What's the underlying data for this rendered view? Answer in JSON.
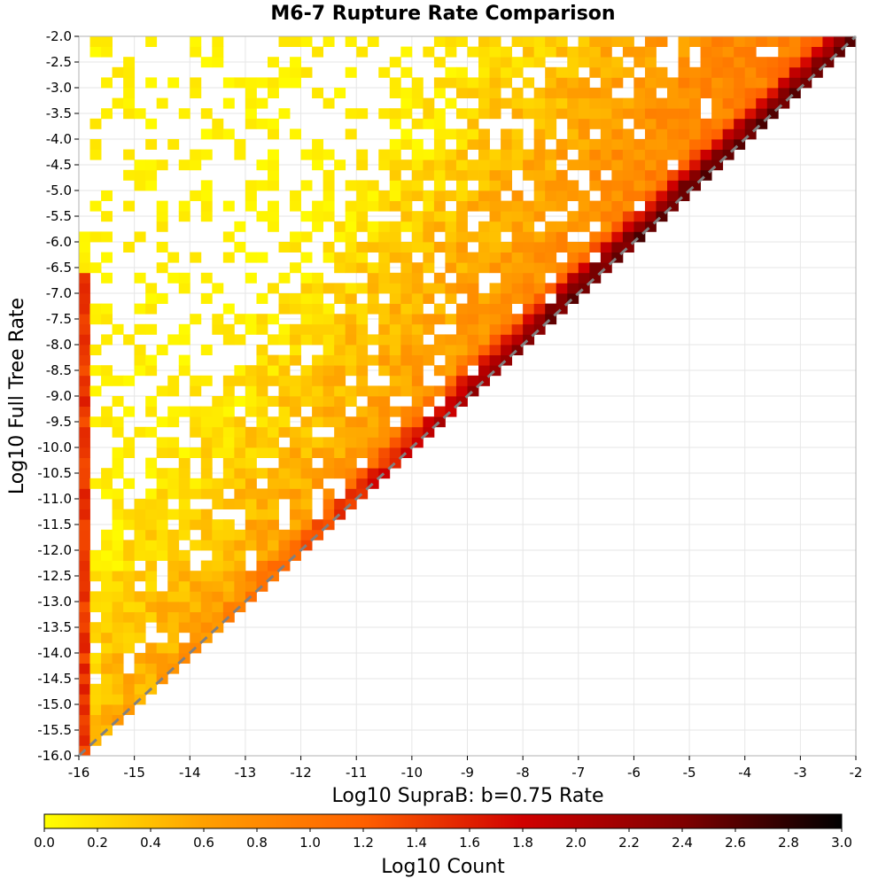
{
  "chart_data": {
    "type": "heatmap",
    "title": "M6-7 Rupture Rate Comparison",
    "xlabel": "Log10 SupraB: b=0.75 Rate",
    "ylabel": "Log10 Full Tree Rate",
    "xlim": [
      -16,
      -2
    ],
    "ylim": [
      -16,
      -2
    ],
    "xticks": [
      -16,
      -15,
      -14,
      -13,
      -12,
      -11,
      -10,
      -9,
      -8,
      -7,
      -6,
      -5,
      -4,
      -3,
      -2
    ],
    "xtick_labels": [
      "-16",
      "-15",
      "-14",
      "-13",
      "-12",
      "-11",
      "-10",
      "-9",
      "-8",
      "-7",
      "-6",
      "-5",
      "-4",
      "-3",
      "-2"
    ],
    "yticks": [
      -2,
      -2.5,
      -3,
      -3.5,
      -4,
      -4.5,
      -5,
      -5.5,
      -6,
      -6.5,
      -7,
      -7.5,
      -8,
      -8.5,
      -9,
      -9.5,
      -10,
      -10.5,
      -11,
      -11.5,
      -12,
      -12.5,
      -13,
      -13.5,
      -14,
      -14.5,
      -15,
      -15.5,
      -16
    ],
    "ytick_labels": [
      "-2.0",
      "-2.5",
      "-3.0",
      "-3.5",
      "-4.0",
      "-4.5",
      "-5.0",
      "-5.5",
      "-6.0",
      "-6.5",
      "-7.0",
      "-7.5",
      "-8.0",
      "-8.5",
      "-9.0",
      "-9.5",
      "-10.0",
      "-10.5",
      "-11.0",
      "-11.5",
      "-12.0",
      "-12.5",
      "-13.0",
      "-13.5",
      "-14.0",
      "-14.5",
      "-15.0",
      "-15.5",
      "-16.0"
    ],
    "bin_size": 0.2,
    "grid": true,
    "reference_line": {
      "style": "dashed",
      "color": "#808080",
      "from": [
        -16,
        -16
      ],
      "to": [
        -2,
        -2
      ]
    },
    "colorbar": {
      "label": "Log10 Count",
      "range": [
        0,
        3
      ],
      "ticks": [
        0.0,
        0.2,
        0.4,
        0.6,
        0.8,
        1.0,
        1.2,
        1.4,
        1.6,
        1.8,
        2.0,
        2.2,
        2.4,
        2.6,
        2.8,
        3.0
      ],
      "tick_labels": [
        "0.0",
        "0.2",
        "0.4",
        "0.6",
        "0.8",
        "1.0",
        "1.2",
        "1.4",
        "1.6",
        "1.8",
        "2.0",
        "2.2",
        "2.4",
        "2.6",
        "2.8",
        "3.0"
      ],
      "colors": [
        "#ffff00",
        "#ffa000",
        "#ff6000",
        "#d00000",
        "#800000",
        "#000000"
      ]
    }
  },
  "colors": {
    "background": "#ffffff",
    "plot_border": "#b0b0b0",
    "gridline": "#e6e6e6",
    "reference_line": "#808080"
  }
}
